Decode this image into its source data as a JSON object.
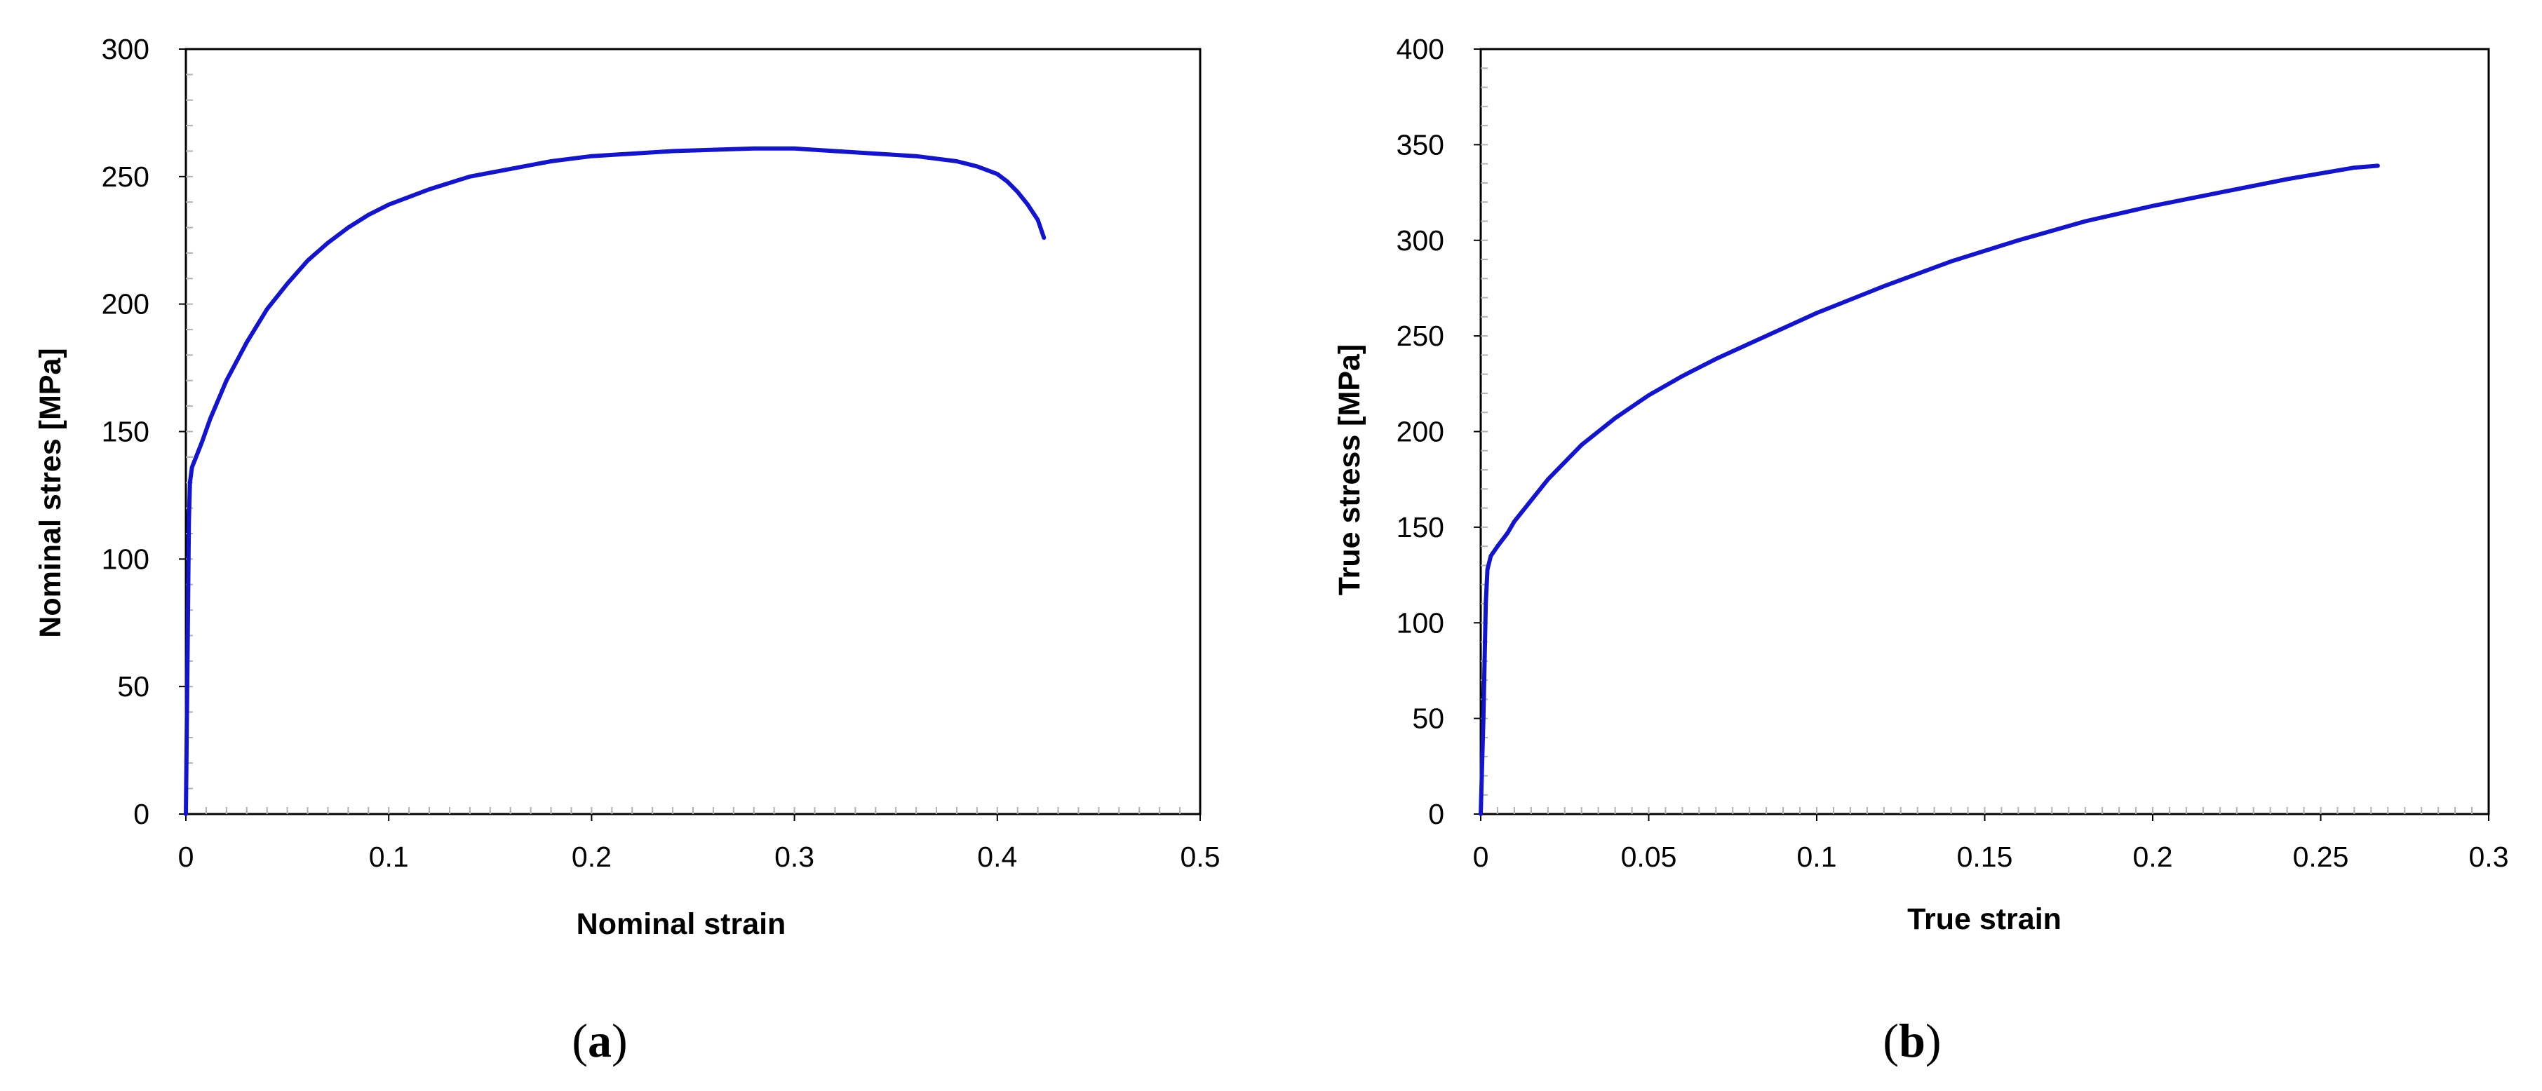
{
  "colors": {
    "series": "#1515c8",
    "axis": "#000000"
  },
  "chart_data": [
    {
      "type": "line",
      "panel_label": "a",
      "xlabel": "Nominal strain",
      "ylabel": "Nominal stres [MPa]",
      "xlim": [
        0,
        0.5
      ],
      "ylim": [
        0,
        300
      ],
      "xticks": [
        0,
        0.1,
        0.2,
        0.3,
        0.4,
        0.5
      ],
      "xtick_labels": [
        "0",
        "0.1",
        "0.2",
        "0.3",
        "0.4",
        "0.5"
      ],
      "yticks": [
        0,
        50,
        100,
        150,
        200,
        250,
        300
      ],
      "ytick_labels": [
        "0",
        "50",
        "100",
        "150",
        "200",
        "250",
        "300"
      ],
      "grid": false,
      "series": [
        {
          "x": [
            0,
            0.0008,
            0.0015,
            0.002,
            0.003,
            0.005,
            0.008,
            0.012,
            0.02,
            0.03,
            0.04,
            0.05,
            0.06,
            0.07,
            0.08,
            0.09,
            0.1,
            0.12,
            0.14,
            0.16,
            0.18,
            0.2,
            0.22,
            0.24,
            0.26,
            0.28,
            0.3,
            0.32,
            0.34,
            0.36,
            0.38,
            0.39,
            0.4,
            0.405,
            0.41,
            0.415,
            0.42,
            0.423
          ],
          "y": [
            0,
            60,
            115,
            130,
            136,
            140,
            146,
            155,
            170,
            185,
            198,
            208,
            217,
            224,
            230,
            235,
            239,
            245,
            250,
            253,
            256,
            258,
            259,
            260,
            260.5,
            261,
            261,
            260,
            259,
            258,
            256,
            254,
            251,
            248,
            244,
            239,
            233,
            226
          ]
        }
      ]
    },
    {
      "type": "line",
      "panel_label": "b",
      "xlabel": "True strain",
      "ylabel": "True stress [MPa]",
      "xlim": [
        0,
        0.3
      ],
      "ylim": [
        0,
        400
      ],
      "xticks": [
        0,
        0.05,
        0.1,
        0.15,
        0.2,
        0.25,
        0.3
      ],
      "xtick_labels": [
        "0",
        "0.05",
        "0.1",
        "0.15",
        "0.2",
        "0.25",
        "0.3"
      ],
      "yticks": [
        0,
        50,
        100,
        150,
        200,
        250,
        300,
        350,
        400
      ],
      "ytick_labels": [
        "0",
        "50",
        "100",
        "150",
        "200",
        "250",
        "300",
        "350",
        "400"
      ],
      "grid": false,
      "series": [
        {
          "x": [
            0,
            0.0008,
            0.0015,
            0.002,
            0.003,
            0.005,
            0.008,
            0.01,
            0.02,
            0.03,
            0.04,
            0.05,
            0.06,
            0.07,
            0.08,
            0.1,
            0.12,
            0.14,
            0.16,
            0.18,
            0.2,
            0.22,
            0.24,
            0.26,
            0.267
          ],
          "y": [
            0,
            50,
            110,
            128,
            135,
            140,
            147,
            153,
            175,
            193,
            207,
            219,
            229,
            238,
            246,
            262,
            276,
            289,
            300,
            310,
            318,
            325,
            332,
            338,
            339
          ]
        }
      ]
    }
  ]
}
